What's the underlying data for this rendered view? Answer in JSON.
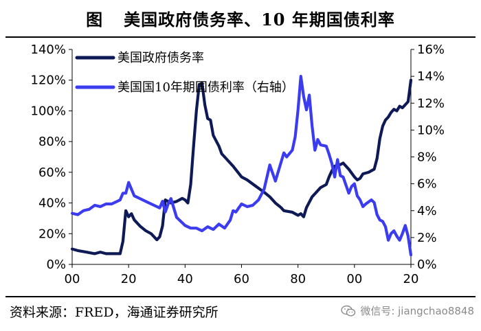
{
  "title": {
    "prefix": "图",
    "text": "美国政府债务率、10 年期国债利率"
  },
  "source": "资料来源：FRED，海通证券研究所",
  "watermark": {
    "icon": "wechat-icon",
    "text": "微信号: jiangchao8848"
  },
  "chart_data": {
    "type": "line",
    "x_tick_labels": [
      "00",
      "20",
      "40",
      "60",
      "80",
      "00",
      "20"
    ],
    "x_ticks": [
      1900,
      1920,
      1940,
      1960,
      1980,
      2000,
      2020
    ],
    "xlim": [
      1900,
      2020
    ],
    "y_left": {
      "ticks": [
        0,
        20,
        40,
        60,
        80,
        100,
        120,
        140
      ],
      "labels": [
        "0%",
        "20%",
        "40%",
        "60%",
        "80%",
        "100%",
        "120%",
        "140%"
      ],
      "ylim": [
        0,
        140
      ]
    },
    "y_right": {
      "ticks": [
        0,
        2,
        4,
        6,
        8,
        10,
        12,
        14,
        16
      ],
      "labels": [
        "0%",
        "2%",
        "4%",
        "6%",
        "8%",
        "10%",
        "12%",
        "14%",
        "16%"
      ],
      "ylim": [
        0,
        16
      ]
    },
    "legend_position": "top-left",
    "series": [
      {
        "name": "美国政府债务率",
        "axis": "left",
        "color": "#0d1a55",
        "x": [
          1900,
          1902,
          1905,
          1908,
          1910,
          1912,
          1915,
          1917,
          1918,
          1919,
          1920,
          1921,
          1922,
          1924,
          1926,
          1928,
          1930,
          1931,
          1932,
          1933,
          1934,
          1935,
          1937,
          1939,
          1940,
          1941,
          1942,
          1943,
          1944,
          1945,
          1946,
          1947,
          1948,
          1949,
          1950,
          1952,
          1953,
          1954,
          1955,
          1957,
          1960,
          1962,
          1965,
          1968,
          1970,
          1972,
          1974,
          1975,
          1978,
          1980,
          1981,
          1982,
          1983,
          1985,
          1986,
          1988,
          1990,
          1991,
          1992,
          1993,
          1995,
          1996,
          1998,
          2000,
          2001,
          2002,
          2003,
          2005,
          2007,
          2008,
          2009,
          2010,
          2011,
          2012,
          2013,
          2014,
          2015,
          2016,
          2017,
          2018,
          2019,
          2020
        ],
        "y": [
          10,
          9,
          8,
          7,
          8,
          7,
          7,
          7,
          15,
          35,
          31,
          33,
          29,
          25,
          22,
          20,
          16,
          18,
          25,
          42,
          41,
          40,
          41,
          43,
          42,
          40,
          52,
          77,
          100,
          117,
          118,
          104,
          95,
          94,
          84,
          77,
          72,
          70,
          68,
          64,
          57,
          55,
          51,
          47,
          44,
          40,
          37,
          35,
          34,
          32,
          33,
          31,
          37,
          44,
          46,
          50,
          52,
          57,
          61,
          64,
          65,
          66,
          62,
          57,
          55,
          56,
          59,
          60,
          62,
          69,
          82,
          90,
          94,
          96,
          99,
          101,
          100,
          103,
          102,
          104,
          106,
          120
        ]
      },
      {
        "name": "美国国10年期国债利率（右轴）",
        "axis": "right",
        "color": "#3b3bf0",
        "x": [
          1900,
          1902,
          1904,
          1906,
          1908,
          1910,
          1912,
          1914,
          1916,
          1917,
          1918,
          1919,
          1920,
          1921,
          1922,
          1924,
          1926,
          1928,
          1930,
          1931,
          1932,
          1933,
          1934,
          1935,
          1937,
          1939,
          1940,
          1942,
          1944,
          1946,
          1948,
          1950,
          1952,
          1954,
          1956,
          1957,
          1958,
          1960,
          1962,
          1964,
          1966,
          1968,
          1970,
          1971,
          1972,
          1974,
          1975,
          1976,
          1978,
          1979,
          1980,
          1981,
          1982,
          1983,
          1984,
          1985,
          1986,
          1987,
          1988,
          1990,
          1991,
          1992,
          1993,
          1994,
          1995,
          1996,
          1998,
          1999,
          2000,
          2001,
          2002,
          2003,
          2004,
          2006,
          2007,
          2008,
          2009,
          2010,
          2011,
          2012,
          2013,
          2014,
          2015,
          2016,
          2017,
          2018,
          2019,
          2020
        ],
        "y": [
          3.8,
          3.7,
          4.0,
          4.1,
          4.4,
          4.3,
          4.5,
          4.5,
          4.7,
          4.8,
          5.3,
          5.3,
          6.1,
          5.6,
          5.1,
          4.9,
          4.7,
          4.5,
          4.3,
          4.2,
          4.7,
          3.9,
          4.5,
          4.9,
          3.5,
          3.1,
          2.9,
          2.7,
          2.7,
          2.5,
          2.8,
          2.6,
          3.0,
          2.7,
          3.3,
          4.0,
          3.9,
          4.5,
          4.3,
          4.4,
          4.8,
          5.6,
          7.4,
          6.8,
          6.2,
          7.6,
          8.3,
          8.0,
          8.5,
          9.5,
          11.5,
          14.0,
          12.5,
          11.5,
          12.6,
          10.3,
          8.5,
          9.3,
          8.9,
          8.8,
          8.2,
          7.5,
          6.5,
          7.8,
          6.6,
          6.5,
          5.3,
          5.8,
          6.0,
          5.1,
          4.8,
          4.3,
          4.5,
          4.8,
          4.6,
          3.7,
          3.3,
          3.2,
          2.8,
          1.8,
          2.3,
          2.5,
          2.1,
          1.8,
          2.3,
          2.9,
          2.1,
          0.7
        ]
      }
    ]
  }
}
